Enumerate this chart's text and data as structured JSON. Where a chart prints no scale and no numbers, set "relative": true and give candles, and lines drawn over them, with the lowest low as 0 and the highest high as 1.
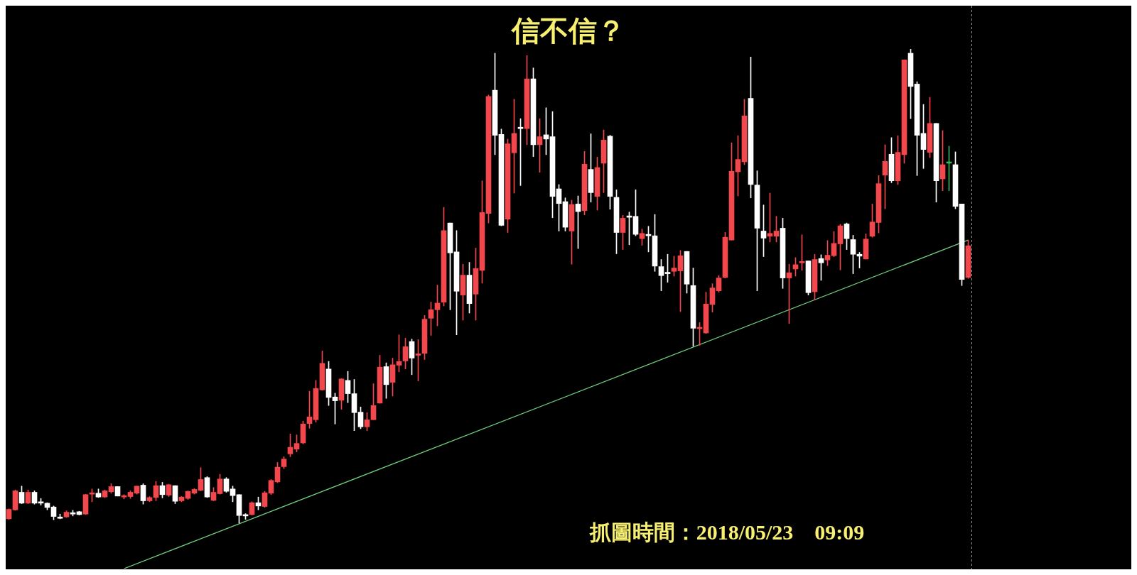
{
  "chart_data": {
    "type": "candlestick",
    "title": "信不信？",
    "annotations": [
      "抓圖時間：2018/05/23　09:09"
    ],
    "relative": true,
    "tick_labels": false,
    "categories": [
      null,
      null,
      null,
      null,
      null,
      null,
      null,
      null,
      null,
      null,
      null,
      null,
      null,
      null,
      null,
      null,
      null,
      null,
      null,
      null,
      null,
      null,
      null,
      null,
      null,
      null,
      null,
      null,
      null,
      null,
      null,
      null,
      null,
      null,
      null,
      null,
      null,
      null,
      null,
      null,
      null,
      null,
      null,
      null,
      null,
      null,
      null,
      null,
      null,
      null,
      null,
      null,
      null,
      null,
      null,
      null,
      null,
      null,
      null,
      null,
      null,
      null,
      null,
      null,
      null,
      null,
      null,
      null,
      null,
      null,
      null,
      null,
      null,
      null,
      null,
      null,
      null,
      null,
      null,
      null,
      null,
      null,
      null,
      null,
      null,
      null,
      null,
      null,
      null,
      null,
      null,
      null,
      null,
      null,
      null,
      null,
      null,
      null,
      null,
      null,
      null,
      null,
      null,
      null,
      null,
      null,
      null,
      null,
      null,
      null,
      null,
      null,
      null,
      null,
      null,
      null,
      null,
      null,
      null,
      null,
      null,
      null,
      null,
      null,
      null,
      null,
      null,
      null,
      null,
      null,
      null,
      null,
      null,
      null,
      null,
      null,
      null,
      null,
      null,
      null,
      null,
      null,
      null,
      null,
      null,
      null,
      null,
      null,
      null,
      null,
      null
    ],
    "series": [
      {
        "type": "candlestick",
        "ohlc": [
          [
            0.009,
            0.03,
            0.008,
            0.029
          ],
          [
            0.028,
            0.07,
            0.027,
            0.068
          ],
          [
            0.065,
            0.078,
            0.041,
            0.042
          ],
          [
            0.042,
            0.07,
            0.041,
            0.065
          ],
          [
            0.065,
            0.068,
            0.04,
            0.042
          ],
          [
            0.043,
            0.052,
            0.038,
            0.042
          ],
          [
            0.042,
            0.043,
            0.028,
            0.033
          ],
          [
            0.034,
            0.036,
            0.007,
            0.014
          ],
          [
            0.013,
            0.019,
            0.009,
            0.013
          ],
          [
            0.013,
            0.026,
            0.012,
            0.023
          ],
          [
            0.022,
            0.027,
            0.015,
            0.022
          ],
          [
            0.024,
            0.025,
            0.017,
            0.018
          ],
          [
            0.019,
            0.061,
            0.018,
            0.06
          ],
          [
            0.061,
            0.072,
            0.045,
            0.062
          ],
          [
            0.063,
            0.072,
            0.054,
            0.055
          ],
          [
            0.055,
            0.07,
            0.054,
            0.068
          ],
          [
            0.066,
            0.083,
            0.063,
            0.077
          ],
          [
            0.077,
            0.077,
            0.057,
            0.057
          ],
          [
            0.055,
            0.06,
            0.051,
            0.056
          ],
          [
            0.056,
            0.068,
            0.052,
            0.065
          ],
          [
            0.063,
            0.078,
            0.061,
            0.078
          ],
          [
            0.08,
            0.083,
            0.04,
            0.047
          ],
          [
            0.047,
            0.056,
            0.045,
            0.054
          ],
          [
            0.054,
            0.088,
            0.047,
            0.079
          ],
          [
            0.079,
            0.086,
            0.053,
            0.06
          ],
          [
            0.059,
            0.082,
            0.056,
            0.081
          ],
          [
            0.079,
            0.079,
            0.041,
            0.046
          ],
          [
            0.047,
            0.056,
            0.045,
            0.055
          ],
          [
            0.052,
            0.068,
            0.05,
            0.067
          ],
          [
            0.063,
            0.073,
            0.061,
            0.071
          ],
          [
            0.069,
            0.117,
            0.068,
            0.092
          ],
          [
            0.096,
            0.098,
            0.054,
            0.055
          ],
          [
            0.048,
            0.075,
            0.047,
            0.065
          ],
          [
            0.062,
            0.103,
            0.061,
            0.093
          ],
          [
            0.093,
            0.096,
            0.065,
            0.067
          ],
          [
            0.072,
            0.078,
            0.045,
            0.058
          ],
          [
            0.06,
            0.06,
            0,
            0.016
          ],
          [
            0.016,
            0.02,
            0.008,
            0.015
          ],
          [
            0.018,
            0.045,
            0.017,
            0.043
          ],
          [
            0.043,
            0.055,
            0.028,
            0.036
          ],
          [
            0.035,
            0.067,
            0.033,
            0.064
          ],
          [
            0.063,
            0.092,
            0.06,
            0.09
          ],
          [
            0.087,
            0.128,
            0.085,
            0.118
          ],
          [
            0.119,
            0.14,
            0.115,
            0.135
          ],
          [
            0.146,
            0.188,
            0.14,
            0.16
          ],
          [
            0.156,
            0.186,
            0.15,
            0.168
          ],
          [
            0.169,
            0.215,
            0.167,
            0.209
          ],
          [
            0.21,
            0.278,
            0.2,
            0.224
          ],
          [
            0.218,
            0.301,
            0.213,
            0.284
          ],
          [
            0.281,
            0.363,
            0.28,
            0.337
          ],
          [
            0.325,
            0.341,
            0.248,
            0.265
          ],
          [
            0.266,
            0.274,
            0.209,
            0.258
          ],
          [
            0.259,
            0.305,
            0.24,
            0.304
          ],
          [
            0.301,
            0.32,
            0.254,
            0.273
          ],
          [
            0.273,
            0.303,
            0.195,
            0.233
          ],
          [
            0.234,
            0.245,
            0.199,
            0.203
          ],
          [
            0.203,
            0.233,
            0.195,
            0.218
          ],
          [
            0.218,
            0.294,
            0.218,
            0.248
          ],
          [
            0.253,
            0.354,
            0.253,
            0.329
          ],
          [
            0.33,
            0.338,
            0.263,
            0.292
          ],
          [
            0.297,
            0.348,
            0.268,
            0.334
          ],
          [
            0.333,
            0.397,
            0.319,
            0.341
          ],
          [
            0.342,
            0.39,
            0.325,
            0.372
          ],
          [
            0.383,
            0.388,
            0.313,
            0.348
          ],
          [
            0.355,
            0.387,
            0.3,
            0.354
          ],
          [
            0.358,
            0.438,
            0.345,
            0.43
          ],
          [
            0.432,
            0.466,
            0.396,
            0.45
          ],
          [
            0.45,
            0.502,
            0.416,
            0.464
          ],
          [
            0.466,
            0.666,
            0.458,
            0.617
          ],
          [
            0.633,
            0.633,
            0.45,
            0.57
          ],
          [
            0.572,
            0.617,
            0.397,
            0.489
          ],
          [
            0.481,
            0.546,
            0.428,
            0.523
          ],
          [
            0.523,
            0.55,
            0.443,
            0.463
          ],
          [
            0.483,
            0.58,
            0.428,
            0.537
          ],
          [
            0.533,
            0.722,
            0.506,
            0.655
          ],
          [
            0.653,
            0.903,
            0.633,
            0.9
          ],
          [
            0.913,
            0.991,
            0.777,
            0.818
          ],
          [
            0.82,
            0.831,
            0.627,
            0.628
          ],
          [
            0.641,
            0.81,
            0.613,
            0.8
          ],
          [
            0.781,
            0.894,
            0.696,
            0.822
          ],
          [
            0.835,
            0.853,
            0.712,
            0.832
          ],
          [
            0.832,
            0.986,
            0.798,
            0.937
          ],
          [
            0.937,
            0.96,
            0.773,
            0.798
          ],
          [
            0.798,
            0.853,
            0.74,
            0.815
          ],
          [
            0.819,
            0.876,
            0.777,
            0.81
          ],
          [
            0.815,
            0.868,
            0.644,
            0.689
          ],
          [
            0.705,
            0.714,
            0.616,
            0.674
          ],
          [
            0.678,
            0.686,
            0.616,
            0.624
          ],
          [
            0.616,
            0.681,
            0.546,
            0.672
          ],
          [
            0.673,
            0.69,
            0.579,
            0.657
          ],
          [
            0.659,
            0.784,
            0.65,
            0.757
          ],
          [
            0.746,
            0.821,
            0.677,
            0.697
          ],
          [
            0.689,
            0.772,
            0.66,
            0.75
          ],
          [
            0.759,
            0.829,
            0.697,
            0.808
          ],
          [
            0.816,
            0.818,
            0.662,
            0.689
          ],
          [
            0.687,
            0.703,
            0.568,
            0.613
          ],
          [
            0.613,
            0.649,
            0.577,
            0.643
          ],
          [
            0.648,
            0.656,
            0.587,
            0.645
          ],
          [
            0.647,
            0.703,
            0.606,
            0.609
          ],
          [
            0.6,
            0.62,
            0.586,
            0.611
          ],
          [
            0.608,
            0.626,
            0.572,
            0.606
          ],
          [
            0.606,
            0.651,
            0.531,
            0.542
          ],
          [
            0.541,
            0.556,
            0.49,
            0.522
          ],
          [
            0.528,
            0.567,
            0.508,
            0.526
          ],
          [
            0.531,
            0.563,
            0.521,
            0.538
          ],
          [
            0.532,
            0.575,
            0.446,
            0.564
          ],
          [
            0.573,
            0.573,
            0.485,
            0.504
          ],
          [
            0.501,
            0.538,
            0.373,
            0.411
          ],
          [
            0.41,
            0.423,
            0.375,
            0.413
          ],
          [
            0.401,
            0.487,
            0.4,
            0.462
          ],
          [
            0.461,
            0.505,
            0.445,
            0.496
          ],
          [
            0.49,
            0.522,
            0.487,
            0.517
          ],
          [
            0.518,
            0.613,
            0.517,
            0.603
          ],
          [
            0.597,
            0.802,
            0.597,
            0.742
          ],
          [
            0.741,
            0.817,
            0.69,
            0.767
          ],
          [
            0.762,
            0.894,
            0.756,
            0.859
          ],
          [
            0.896,
            0.983,
            0.686,
            0.714
          ],
          [
            0.713,
            0.743,
            0.49,
            0.622
          ],
          [
            0.616,
            0.671,
            0.562,
            0.601
          ],
          [
            0.605,
            0.696,
            0.593,
            0.611
          ],
          [
            0.605,
            0.647,
            0.593,
            0.616
          ],
          [
            0.622,
            0.643,
            0.495,
            0.517
          ],
          [
            0.517,
            0.546,
            0.421,
            0.528
          ],
          [
            0.536,
            0.56,
            0.521,
            0.545
          ],
          [
            0.549,
            0.608,
            0.533,
            0.55
          ],
          [
            0.553,
            0.553,
            0.481,
            0.486
          ],
          [
            0.488,
            0.567,
            0.471,
            0.556
          ],
          [
            0.558,
            0.566,
            0.512,
            0.549
          ],
          [
            0.555,
            0.596,
            0.543,
            0.565
          ],
          [
            0.564,
            0.615,
            0.562,
            0.59
          ],
          [
            0.589,
            0.63,
            0.534,
            0.627
          ],
          [
            0.631,
            0.633,
            0.577,
            0.6
          ],
          [
            0.598,
            0.607,
            0.526,
            0.567
          ],
          [
            0.567,
            0.571,
            0.538,
            0.563
          ],
          [
            0.557,
            0.61,
            0.557,
            0.599
          ],
          [
            0.605,
            0.673,
            0.603,
            0.635
          ],
          [
            0.634,
            0.733,
            0.612,
            0.716
          ],
          [
            0.734,
            0.798,
            0.663,
            0.763
          ],
          [
            0.778,
            0.813,
            0.718,
            0.722
          ],
          [
            0.722,
            0.817,
            0.714,
            0.782
          ],
          [
            0.777,
            0.977,
            0.759,
            0.977
          ],
          [
            0.991,
            1,
            0.853,
            0.921
          ],
          [
            0.926,
            0.931,
            0.733,
            0.818
          ],
          [
            0.822,
            0.883,
            0.748,
            0.788
          ],
          [
            0.782,
            0.898,
            0.771,
            0.843
          ],
          [
            0.843,
            0.843,
            0.677,
            0.722
          ],
          [
            0.726,
            0.828,
            0.701,
            0.756
          ],
          [
            0.762,
            0.795,
            0.701,
            0.762
          ],
          [
            0.756,
            0.783,
            0.663,
            0.668
          ],
          [
            0.673,
            0.673,
            0.501,
            0.514
          ],
          [
            0.518,
            0.597,
            0.516,
            0.585
          ]
        ],
        "colors": [
          "#f2474d",
          "#f2474d",
          "#ffffff",
          "#f2474d",
          "#ffffff",
          "#ffffff",
          "#ffffff",
          "#ffffff",
          "#ffffff",
          "#f2474d",
          "#ffffff",
          "#ffffff",
          "#f2474d",
          "#f2474d",
          "#ffffff",
          "#f2474d",
          "#f2474d",
          "#ffffff",
          "#f2474d",
          "#f2474d",
          "#f2474d",
          "#ffffff",
          "#f2474d",
          "#f2474d",
          "#ffffff",
          "#f2474d",
          "#ffffff",
          "#f2474d",
          "#f2474d",
          "#f2474d",
          "#f2474d",
          "#ffffff",
          "#f2474d",
          "#f2474d",
          "#ffffff",
          "#ffffff",
          "#ffffff",
          "#ffffff",
          "#f2474d",
          "#ffffff",
          "#f2474d",
          "#f2474d",
          "#f2474d",
          "#f2474d",
          "#f2474d",
          "#f2474d",
          "#f2474d",
          "#f2474d",
          "#f2474d",
          "#f2474d",
          "#ffffff",
          "#ffffff",
          "#f2474d",
          "#ffffff",
          "#ffffff",
          "#ffffff",
          "#f2474d",
          "#f2474d",
          "#f2474d",
          "#ffffff",
          "#f2474d",
          "#f2474d",
          "#f2474d",
          "#ffffff",
          "#f2474d",
          "#f2474d",
          "#f2474d",
          "#f2474d",
          "#f2474d",
          "#ffffff",
          "#ffffff",
          "#f2474d",
          "#ffffff",
          "#f2474d",
          "#f2474d",
          "#f2474d",
          "#ffffff",
          "#ffffff",
          "#f2474d",
          "#f2474d",
          "#ffffff",
          "#f2474d",
          "#ffffff",
          "#f2474d",
          "#ffffff",
          "#ffffff",
          "#ffffff",
          "#ffffff",
          "#f2474d",
          "#ffffff",
          "#f2474d",
          "#ffffff",
          "#f2474d",
          "#f2474d",
          "#ffffff",
          "#ffffff",
          "#f2474d",
          "#ffffff",
          "#ffffff",
          "#f2474d",
          "#ffffff",
          "#ffffff",
          "#ffffff",
          "#ffffff",
          "#f2474d",
          "#f2474d",
          "#ffffff",
          "#ffffff",
          "#f2474d",
          "#f2474d",
          "#f2474d",
          "#f2474d",
          "#f2474d",
          "#f2474d",
          "#f2474d",
          "#f2474d",
          "#ffffff",
          "#ffffff",
          "#ffffff",
          "#f2474d",
          "#f2474d",
          "#ffffff",
          "#f2474d",
          "#f2474d",
          "#f2474d",
          "#ffffff",
          "#f2474d",
          "#ffffff",
          "#f2474d",
          "#f2474d",
          "#f2474d",
          "#ffffff",
          "#ffffff",
          "#ffffff",
          "#f2474d",
          "#f2474d",
          "#f2474d",
          "#f2474d",
          "#ffffff",
          "#f2474d",
          "#f2474d",
          "#ffffff",
          "#ffffff",
          "#ffffff",
          "#f2474d",
          "#ffffff",
          "#f2474d",
          "#3cb35a",
          "#ffffff",
          "#ffffff",
          "#f2474d"
        ]
      },
      {
        "type": "line",
        "color": "#6fcf7f",
        "values": [
          null,
          null,
          null,
          null,
          null,
          null,
          null,
          null,
          null,
          null,
          null,
          null,
          null,
          null,
          null,
          null,
          null,
          null,
          -0.096,
          null,
          null,
          null,
          null,
          null,
          null,
          null,
          null,
          null,
          null,
          null,
          null,
          null,
          null,
          null,
          null,
          null,
          null,
          null,
          null,
          null,
          null,
          null,
          null,
          null,
          null,
          null,
          null,
          null,
          null,
          null,
          null,
          null,
          null,
          null,
          null,
          null,
          null,
          null,
          null,
          null,
          null,
          null,
          null,
          null,
          null,
          null,
          null,
          null,
          null,
          null,
          null,
          null,
          null,
          null,
          null,
          null,
          null,
          null,
          null,
          null,
          null,
          null,
          null,
          null,
          null,
          null,
          null,
          null,
          null,
          null,
          null,
          null,
          null,
          null,
          null,
          null,
          null,
          null,
          null,
          null,
          null,
          null,
          null,
          null,
          null,
          null,
          null,
          null,
          null,
          null,
          null,
          null,
          null,
          null,
          null,
          null,
          null,
          null,
          null,
          null,
          null,
          null,
          null,
          null,
          null,
          null,
          null,
          null,
          null,
          null,
          null,
          null,
          null,
          null,
          null,
          null,
          null,
          null,
          null,
          null,
          null,
          null,
          null,
          null,
          null,
          null,
          null,
          null,
          null,
          null,
          0.597
        ]
      }
    ]
  }
}
